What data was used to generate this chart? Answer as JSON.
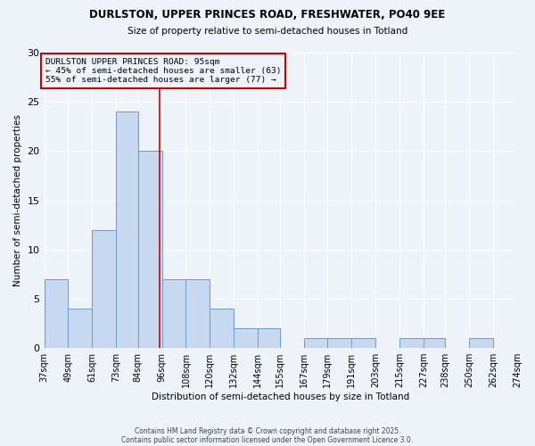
{
  "title1": "DURLSTON, UPPER PRINCES ROAD, FRESHWATER, PO40 9EE",
  "title2": "Size of property relative to semi-detached houses in Totland",
  "xlabel": "Distribution of semi-detached houses by size in Totland",
  "ylabel": "Number of semi-detached properties",
  "bin_edges": [
    37,
    49,
    61,
    73,
    84,
    96,
    108,
    120,
    132,
    144,
    155,
    167,
    179,
    191,
    203,
    215,
    227,
    238,
    250,
    262,
    274
  ],
  "bar_heights": [
    7,
    4,
    12,
    24,
    20,
    7,
    7,
    4,
    2,
    2,
    0,
    1,
    1,
    1,
    0,
    1,
    1,
    0,
    1,
    0
  ],
  "bar_color": "#c6d9f1",
  "bar_edgecolor": "#7099c8",
  "subject_value": 95,
  "subject_line_color": "#cc0000",
  "annotation_title": "DURLSTON UPPER PRINCES ROAD: 95sqm",
  "annotation_line1": "← 45% of semi-detached houses are smaller (63)",
  "annotation_line2": "55% of semi-detached houses are larger (77) →",
  "annotation_box_color": "#cc0000",
  "ylim": [
    0,
    30
  ],
  "yticks": [
    0,
    5,
    10,
    15,
    20,
    25,
    30
  ],
  "tick_labels": [
    "37sqm",
    "49sqm",
    "61sqm",
    "73sqm",
    "84sqm",
    "96sqm",
    "108sqm",
    "120sqm",
    "132sqm",
    "144sqm",
    "155sqm",
    "167sqm",
    "179sqm",
    "191sqm",
    "203sqm",
    "215sqm",
    "227sqm",
    "238sqm",
    "250sqm",
    "262sqm",
    "274sqm"
  ],
  "footer1": "Contains HM Land Registry data © Crown copyright and database right 2025.",
  "footer2": "Contains public sector information licensed under the Open Government Licence 3.0.",
  "bg_color": "#eef2f9"
}
